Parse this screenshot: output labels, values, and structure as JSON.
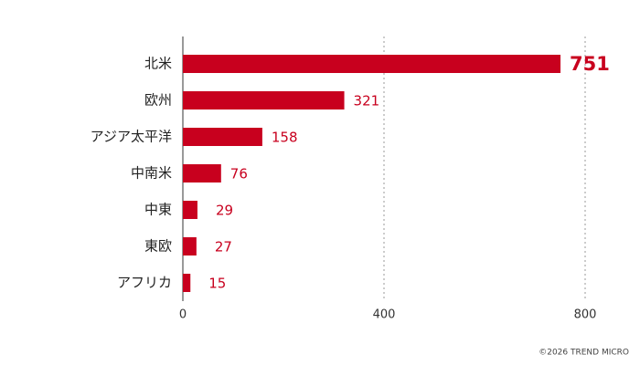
{
  "chart_data": {
    "type": "bar",
    "orientation": "horizontal",
    "categories": [
      "北米",
      "欧州",
      "アジア太平洋",
      "中南米",
      "中東",
      "東欧",
      "アフリカ"
    ],
    "values": [
      751,
      321,
      158,
      76,
      29,
      27,
      15
    ],
    "color": "#c8001e",
    "xlim": [
      0,
      800
    ],
    "xticks": [
      0,
      400,
      800
    ],
    "grid": true,
    "footer": "©2026 TREND MICRO"
  }
}
